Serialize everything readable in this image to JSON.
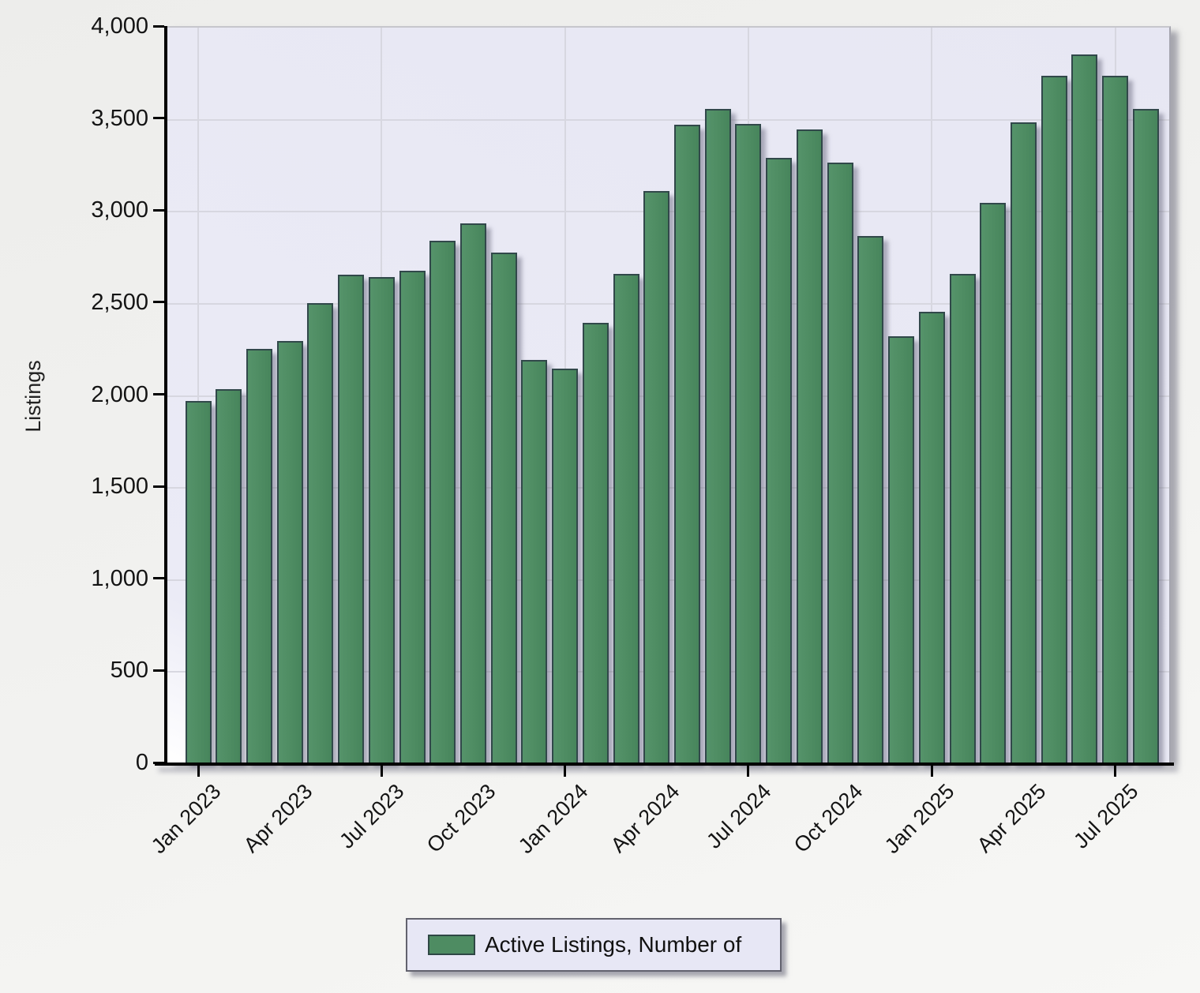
{
  "chart_data": {
    "type": "bar",
    "title": "",
    "xlabel": "",
    "ylabel": "Listings",
    "ylim": [
      0,
      4000
    ],
    "y_tick_interval": 500,
    "y_tick_labels": [
      "0",
      "500",
      "1,000",
      "1,500",
      "2,000",
      "2,500",
      "3,000",
      "3,500",
      "4,000"
    ],
    "categories": [
      "Jan 2023",
      "Feb 2023",
      "Mar 2023",
      "Apr 2023",
      "May 2023",
      "Jun 2023",
      "Jul 2023",
      "Aug 2023",
      "Sep 2023",
      "Oct 2023",
      "Nov 2023",
      "Dec 2023",
      "Jan 2024",
      "Feb 2024",
      "Mar 2024",
      "Apr 2024",
      "May 2024",
      "Jun 2024",
      "Jul 2024",
      "Aug 2024",
      "Sep 2024",
      "Oct 2024",
      "Nov 2024",
      "Dec 2024",
      "Jan 2025",
      "Feb 2025",
      "Mar 2025",
      "Apr 2025",
      "May 2025",
      "Jun 2025",
      "Jul 2025",
      "Aug 2025"
    ],
    "series": [
      {
        "name": "Active Listings, Number of",
        "values": [
          1965,
          2030,
          2245,
          2290,
          2495,
          2650,
          2635,
          2670,
          2835,
          2930,
          2770,
          2185,
          2140,
          2390,
          2655,
          3105,
          3465,
          3550,
          3470,
          3285,
          3440,
          3260,
          2860,
          2315,
          2450,
          2655,
          3040,
          3475,
          3730,
          3845,
          3730,
          3550
        ]
      }
    ],
    "x_tick_labels": [
      "Jan 2023",
      "Apr 2023",
      "Jul 2023",
      "Oct 2023",
      "Jan 2024",
      "Apr 2024",
      "Jul 2024",
      "Oct 2024",
      "Jan 2025",
      "Apr 2025",
      "Jul 2025"
    ],
    "x_tick_label_bar_indices": [
      0,
      3,
      6,
      9,
      12,
      15,
      18,
      21,
      24,
      27,
      30
    ],
    "x_major_tick_bar_indices": [
      0,
      6,
      12,
      18,
      24,
      30
    ],
    "grid": true,
    "legend_position": "bottom",
    "legend": {
      "label": "Active Listings, Number of",
      "swatch_color": "#4e8c62"
    },
    "colors": {
      "bar_fill": "#4e8c62",
      "bar_border": "#31484a",
      "plot_background": "#e7e7f3",
      "gridline": "#d7d7e0",
      "axis": "#000000"
    }
  }
}
